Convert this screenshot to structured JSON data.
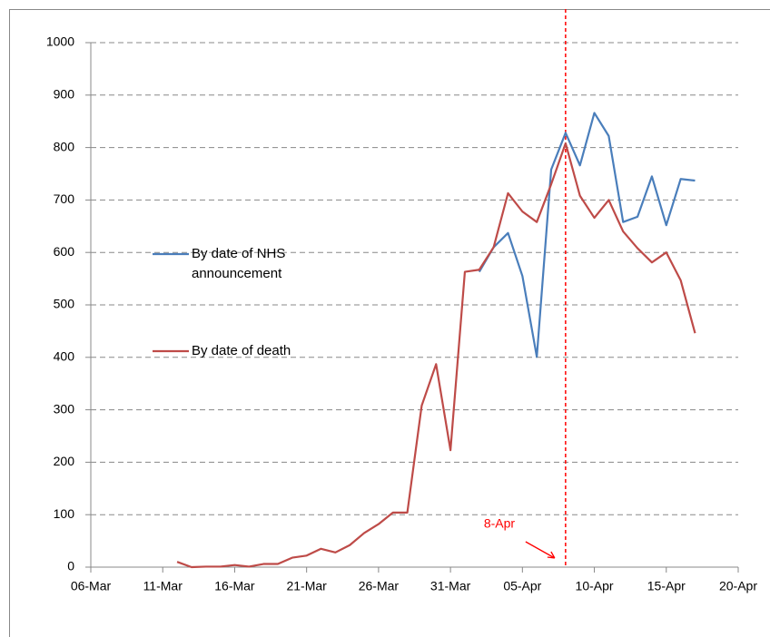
{
  "chart_data": {
    "type": "line",
    "x": [
      "12-Mar",
      "13-Mar",
      "14-Mar",
      "15-Mar",
      "16-Mar",
      "17-Mar",
      "18-Mar",
      "19-Mar",
      "20-Mar",
      "21-Mar",
      "22-Mar",
      "23-Mar",
      "24-Mar",
      "25-Mar",
      "26-Mar",
      "27-Mar",
      "28-Mar",
      "29-Mar",
      "30-Mar",
      "31-Mar",
      "01-Apr",
      "02-Apr",
      "03-Apr",
      "04-Apr",
      "05-Apr",
      "06-Apr",
      "07-Apr",
      "08-Apr",
      "09-Apr",
      "10-Apr",
      "11-Apr",
      "12-Apr",
      "13-Apr",
      "14-Apr",
      "15-Apr",
      "16-Apr",
      "17-Apr"
    ],
    "series": [
      {
        "name": "By date of NHS announcement",
        "color": "#4a7ebb",
        "values": [
          null,
          null,
          null,
          null,
          null,
          null,
          null,
          null,
          null,
          null,
          null,
          null,
          null,
          null,
          null,
          null,
          null,
          null,
          null,
          null,
          null,
          563,
          610,
          637,
          555,
          401,
          758,
          828,
          766,
          866,
          822,
          658,
          668,
          745,
          652,
          740,
          737
        ]
      },
      {
        "name": "By date of death",
        "color": "#be4b48",
        "values": [
          10,
          0,
          1,
          1,
          4,
          1,
          6,
          6,
          18,
          22,
          35,
          28,
          42,
          65,
          82,
          104,
          104,
          308,
          387,
          223,
          563,
          567,
          610,
          713,
          678,
          658,
          730,
          808,
          708,
          666,
          700,
          640,
          608,
          581,
          600,
          547,
          446
        ]
      }
    ],
    "xlim": [
      "06-Mar",
      "20-Apr"
    ],
    "xticks": [
      "06-Mar",
      "11-Mar",
      "16-Mar",
      "21-Mar",
      "26-Mar",
      "31-Mar",
      "05-Apr",
      "10-Apr",
      "15-Apr",
      "20-Apr"
    ],
    "ylim": [
      0,
      1000
    ],
    "yticks": [
      0,
      100,
      200,
      300,
      400,
      500,
      600,
      700,
      800,
      900,
      1000
    ],
    "grid": true,
    "legend": "left",
    "annotations": [
      {
        "text": "8-Apr",
        "x": "08-Apr",
        "color": "#ff0000"
      }
    ]
  }
}
